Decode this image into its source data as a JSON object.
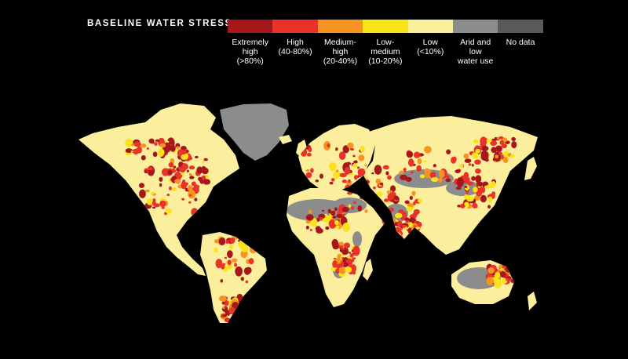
{
  "legend": {
    "title": "BASELINE WATER STRESS",
    "categories": [
      {
        "label": "Extremely\nhigh\n(>80%)",
        "color": "#a6171c"
      },
      {
        "label": "High\n(40-80%)",
        "color": "#e8332a"
      },
      {
        "label": "Medium-\nhigh\n(20-40%)",
        "color": "#f79421"
      },
      {
        "label": "Low-\nmedium\n(10-20%)",
        "color": "#fbe31c"
      },
      {
        "label": "Low\n(<10%)",
        "color": "#fcef9a"
      },
      {
        "label": "Arid and low\nwater use",
        "color": "#8c8c8c"
      },
      {
        "label": "No data",
        "color": "#5a5a5a"
      }
    ]
  },
  "map": {
    "background": "#000000",
    "land_base_color": "#fbee9c"
  }
}
